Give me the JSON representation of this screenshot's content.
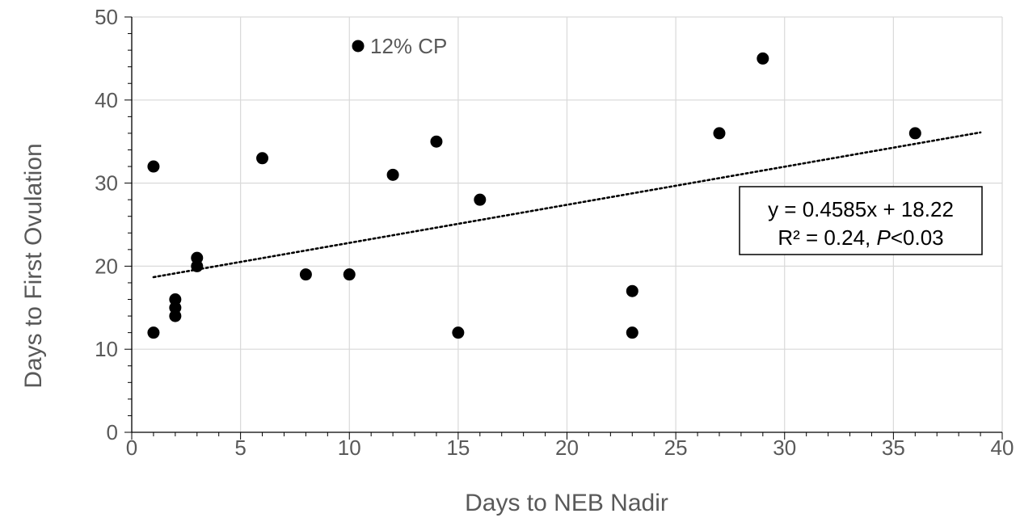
{
  "chart_data": {
    "type": "scatter",
    "title": "",
    "xlabel": "Days to NEB Nadir",
    "ylabel": "Days to First Ovulation",
    "xlim": [
      0,
      40
    ],
    "ylim": [
      0,
      50
    ],
    "xticks": [
      0,
      5,
      10,
      15,
      20,
      25,
      30,
      35,
      40
    ],
    "yticks": [
      0,
      10,
      20,
      30,
      40,
      50
    ],
    "xtick_labels": [
      "0",
      "5",
      "10",
      "15",
      "20",
      "25",
      "30",
      "35",
      "40"
    ],
    "ytick_labels": [
      "0",
      "10",
      "20",
      "30",
      "40",
      "50"
    ],
    "grid": true,
    "legend": false,
    "colors": {
      "points": "#000000",
      "grid": "#d9d9d9",
      "text": "#595959",
      "axis": "#000000"
    },
    "series": [
      {
        "x": [
          1,
          1,
          2,
          2,
          2,
          3,
          3,
          6,
          8,
          10,
          10.4,
          12,
          14,
          15,
          16,
          23,
          23,
          27,
          29,
          36
        ],
        "y": [
          32,
          12,
          16,
          15,
          14,
          21,
          20,
          33,
          19,
          19,
          46.5,
          31,
          35,
          12,
          28,
          17,
          12,
          36,
          45,
          36
        ]
      }
    ],
    "trendline": {
      "style": "dotted",
      "slope": 0.4585,
      "intercept": 18.22,
      "x_range": [
        1,
        39
      ]
    },
    "annotations": [
      {
        "text": "12% CP",
        "x": 10.4,
        "y": 46.5
      }
    ],
    "equation_box": {
      "line1": "y = 0.4585x + 18.22",
      "line2_prefix": "R² = 0.24, ",
      "line2_italic": "P",
      "line2_suffix": "<0.03"
    }
  }
}
